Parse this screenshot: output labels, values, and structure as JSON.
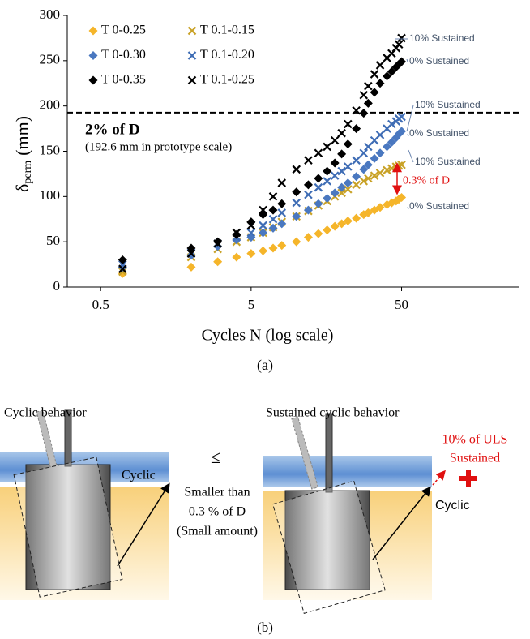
{
  "chart_data": {
    "type": "scatter",
    "y_label": "δ",
    "y_label_sub": "perm",
    "y_label_unit": "(mm)",
    "x_label": "Cycles N (log scale)",
    "caption": "(a)",
    "log_x": true,
    "xlim": [
      0.3,
      300
    ],
    "xticks": [
      0.5,
      5,
      50
    ],
    "ylim": [
      0,
      300
    ],
    "yticks": [
      0,
      50,
      100,
      150,
      200,
      250,
      300
    ],
    "x": [
      0.7,
      2,
      3,
      4,
      5,
      6,
      7,
      8,
      10,
      12,
      14,
      16,
      18,
      20,
      22,
      25,
      28,
      30,
      33,
      36,
      40,
      43,
      46,
      48,
      50
    ],
    "series": [
      {
        "name": "T 0-0.25",
        "color": "#f5b52a",
        "marker": "diamond",
        "values": [
          15,
          22,
          28,
          33,
          37,
          40,
          43,
          46,
          50,
          55,
          59,
          63,
          67,
          70,
          73,
          76,
          80,
          82,
          85,
          88,
          91,
          93,
          95,
          97,
          99
        ]
      },
      {
        "name": "T 0.1-0.15",
        "color": "#c9a227",
        "marker": "x",
        "values": [
          17,
          33,
          42,
          50,
          55,
          60,
          66,
          72,
          78,
          84,
          90,
          95,
          100,
          104,
          108,
          113,
          117,
          120,
          123,
          126,
          129,
          131,
          133,
          134,
          135
        ]
      },
      {
        "name": "T 0-0.30",
        "color": "#4a78c0",
        "marker": "diamond",
        "values": [
          22,
          35,
          45,
          52,
          55,
          60,
          65,
          70,
          78,
          85,
          92,
          98,
          104,
          110,
          115,
          122,
          130,
          135,
          142,
          148,
          155,
          160,
          165,
          169,
          172
        ]
      },
      {
        "name": "T 0.1-0.20",
        "color": "#3f6db5",
        "marker": "x",
        "values": [
          25,
          38,
          48,
          55,
          60,
          68,
          75,
          82,
          93,
          102,
          110,
          117,
          123,
          128,
          133,
          140,
          148,
          155,
          162,
          168,
          175,
          180,
          183,
          186,
          188
        ]
      },
      {
        "name": "T 0-0.35",
        "color": "#000000",
        "marker": "diamond",
        "values": [
          30,
          43,
          50,
          58,
          72,
          80,
          85,
          92,
          105,
          113,
          120,
          128,
          137,
          147,
          158,
          175,
          192,
          203,
          215,
          225,
          233,
          238,
          243,
          246,
          249
        ]
      },
      {
        "name": "T 0.1-0.25",
        "color": "#000000",
        "marker": "x",
        "values": [
          20,
          37,
          48,
          60,
          68,
          85,
          100,
          115,
          130,
          140,
          148,
          155,
          162,
          170,
          180,
          195,
          212,
          222,
          235,
          245,
          253,
          258,
          264,
          268,
          275
        ]
      }
    ],
    "threshold": {
      "value": 192.6,
      "label": "2% of D",
      "note": "(192.6 mm in prototype scale)"
    },
    "right_labels": [
      "10% Sustained",
      "0% Sustained",
      "10% Sustained",
      "0% Sustained",
      "10% Sustained",
      "0% Sustained"
    ],
    "gap_label": "0.3% of D"
  },
  "diagram": {
    "left_title": "Cyclic behavior",
    "left_load": "Cyclic",
    "relation": "≤",
    "relation_text": [
      "Smaller than",
      "0.3 % of D",
      "(Small amount)"
    ],
    "right_title": "Sustained cyclic behavior",
    "sustained": [
      "10% of ULS",
      "Sustained"
    ],
    "right_load": "Cyclic",
    "caption": "(b)"
  }
}
